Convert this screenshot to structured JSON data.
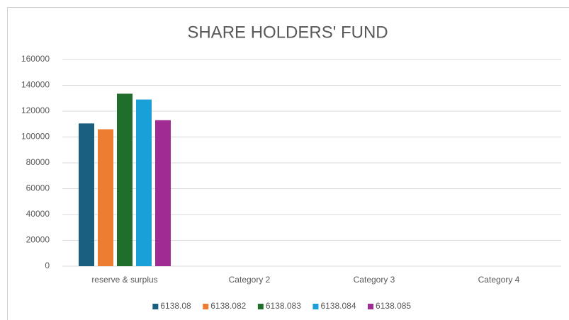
{
  "chart_data": {
    "type": "bar",
    "title": "SHARE HOLDERS' FUND",
    "categories": [
      "reserve & surplus",
      "Category 2",
      "Category 3",
      "Category 4"
    ],
    "series": [
      {
        "name": "6138.08",
        "color": "#1b5f80",
        "values": [
          110500,
          null,
          null,
          null
        ]
      },
      {
        "name": "6138.082",
        "color": "#ed7d31",
        "values": [
          106000,
          null,
          null,
          null
        ]
      },
      {
        "name": "6138.083",
        "color": "#1f6e2b",
        "values": [
          133500,
          null,
          null,
          null
        ]
      },
      {
        "name": "6138.084",
        "color": "#1aa0d8",
        "values": [
          129000,
          null,
          null,
          null
        ]
      },
      {
        "name": "6138.085",
        "color": "#a02b93",
        "values": [
          113000,
          null,
          null,
          null
        ]
      }
    ],
    "ylim": [
      0,
      160000
    ],
    "yticks": [
      0,
      20000,
      40000,
      60000,
      80000,
      100000,
      120000,
      140000,
      160000
    ],
    "grid": true,
    "legend": "bottom"
  }
}
